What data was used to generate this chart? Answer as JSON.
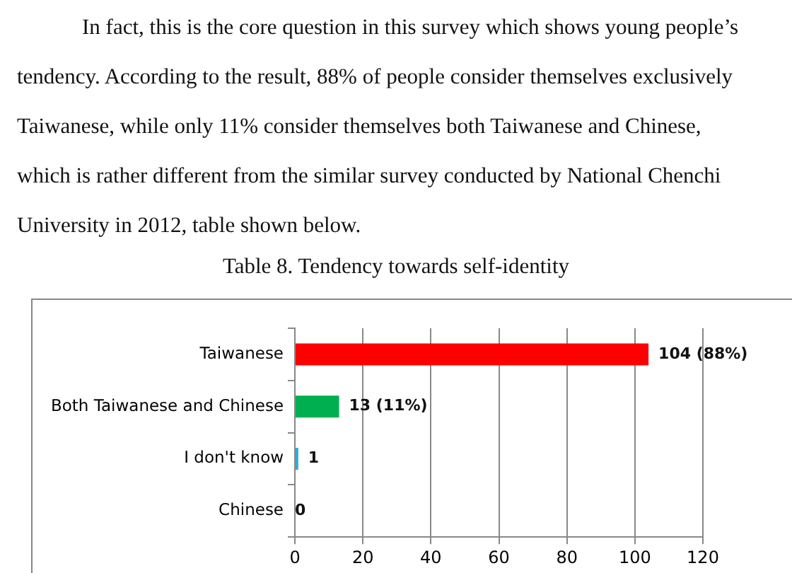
{
  "chart_data": {
    "type": "bar",
    "orientation": "horizontal",
    "title": "Table 8. Tendency towards self-identity",
    "annotations": [
      "In fact, this is the core question in this survey which shows young people’s tendency. According to the result, 88% of people consider themselves exclusively Taiwanese, while only 11% consider themselves both Taiwanese and Chinese, which is rather different from the similar survey conducted by National Chenchi University in 2012, table shown below."
    ],
    "categories": [
      "Taiwanese",
      "Both Taiwanese and Chinese",
      "I don't know",
      "Chinese"
    ],
    "values": [
      104,
      13,
      1,
      0
    ],
    "colors": [
      "#ff0000",
      "#00b050",
      "#31a9d8",
      "#31a9d8"
    ],
    "value_labels": [
      "104 (88%)",
      "13 (11%)",
      "1",
      "0"
    ],
    "xlim": [
      0,
      120
    ],
    "xticks": [
      0,
      20,
      40,
      60,
      80,
      100,
      120
    ],
    "grid": "x",
    "legend": false
  }
}
